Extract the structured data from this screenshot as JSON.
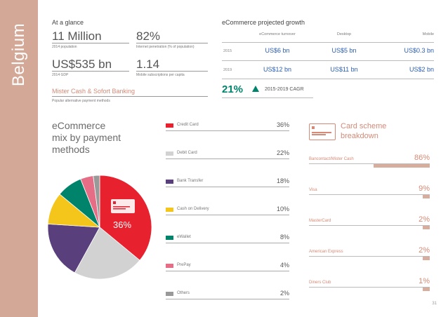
{
  "country": "Belgium",
  "at_a_glance": {
    "title": "At a glance",
    "stats": [
      {
        "value": "11 Million",
        "label": "2014 population"
      },
      {
        "value": "82%",
        "label": "Internet penetration (% of population)"
      },
      {
        "value": "US$535 bn",
        "label": "2014 GDP"
      },
      {
        "value": "1.14",
        "label": "Mobile subscriptions per capita"
      }
    ],
    "payment_highlight": "Mister Cash & Sofort Banking",
    "payment_highlight_label": "Popular alternative payment methods"
  },
  "growth": {
    "title": "eCommerce projected growth",
    "headers": [
      "eCommerce turnover",
      "Desktop",
      "Mobile"
    ],
    "rows": [
      {
        "year": "2015",
        "values": [
          "US$6 bn",
          "US$5 bn",
          "US$0.3 bn"
        ]
      },
      {
        "year": "2019",
        "values": [
          "US$12 bn",
          "US$11 bn",
          "US$2 bn"
        ]
      }
    ],
    "cagr_value": "21%",
    "cagr_arrow": "up-triangle-icon",
    "cagr_label": "2015-2019 CAGR"
  },
  "mix_title_lines": [
    "eCommerce",
    "mix by payment",
    "methods"
  ],
  "card_icon_text": "",
  "chart_data": {
    "type": "pie",
    "title": "eCommerce mix by payment methods",
    "categories": [
      "Credit Card",
      "Debit Card",
      "Bank Transfer",
      "Cash on Delivery",
      "eWallet",
      "PrePay",
      "Others"
    ],
    "values": [
      36,
      22,
      18,
      10,
      8,
      4,
      2
    ],
    "value_labels": [
      "36%",
      "22%",
      "18%",
      "10%",
      "8%",
      "4%",
      "2%"
    ],
    "colors": [
      "#e8212f",
      "#d2d2d2",
      "#5a3f7d",
      "#f4c51a",
      "#00836b",
      "#e56d86",
      "#999999"
    ],
    "callout": "36%"
  },
  "card_scheme": {
    "title_lines": [
      "Card scheme",
      "breakdown"
    ],
    "items": [
      {
        "label": "Bancontact/Mister Cash",
        "value": 86,
        "display": "86%"
      },
      {
        "label": "Visa",
        "value": 9,
        "display": "9%"
      },
      {
        "label": "MasterCard",
        "value": 2,
        "display": "2%"
      },
      {
        "label": "American Express",
        "value": 2,
        "display": "2%"
      },
      {
        "label": "Diners Club",
        "value": 1,
        "display": "1%"
      }
    ]
  },
  "page_number": "31"
}
